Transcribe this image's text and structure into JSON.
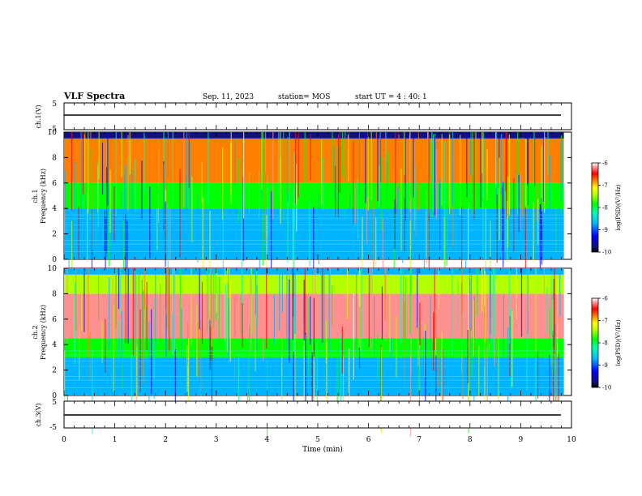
{
  "header": {
    "title": "VLF Spectra",
    "date": "Sep. 11, 2023",
    "station": "station= MOS",
    "start": "start UT =  4 : 40: 1"
  },
  "chart_data": [
    {
      "type": "line",
      "panel": "ch1-waveform",
      "ylabel": "ch.1(V)",
      "ylim": [
        -5,
        5
      ],
      "yticks": [
        "5",
        "-5"
      ],
      "x_range_min": [
        0,
        9.85
      ],
      "y_value": -1.8
    },
    {
      "type": "heatmap",
      "panel": "ch1-spectrogram",
      "ylabel": "ch.1\nFrequency (kHz)",
      "ylim": [
        0,
        10
      ],
      "yticks": [
        "0",
        "2",
        "4",
        "6",
        "8",
        "10"
      ],
      "colorbar": {
        "label": "log(PSD)(V²/Hz)",
        "range": [
          -10,
          -6
        ],
        "ticks": [
          "-6",
          "-7",
          "-8",
          "-9",
          "-10"
        ]
      },
      "bands": [
        {
          "from_khz": 0,
          "to_khz": 4,
          "level": -9.2
        },
        {
          "from_khz": 4,
          "to_khz": 6,
          "level": -8.0
        },
        {
          "from_khz": 6,
          "to_khz": 9.5,
          "level": -7.0
        },
        {
          "from_khz": 9.5,
          "to_khz": 10,
          "level": -9.8
        }
      ]
    },
    {
      "type": "heatmap",
      "panel": "ch2-spectrogram",
      "ylabel": "ch.2\nFrequency (kHz)",
      "ylim": [
        0,
        10
      ],
      "yticks": [
        "0",
        "2",
        "4",
        "6",
        "8",
        "10"
      ],
      "colorbar": {
        "label": "log(PSD)(V²/Hz)",
        "range": [
          -10,
          -6
        ],
        "ticks": [
          "-6",
          "-7",
          "-8",
          "-9",
          "-10"
        ]
      },
      "bands": [
        {
          "from_khz": 0,
          "to_khz": 3,
          "level": -8.8
        },
        {
          "from_khz": 3,
          "to_khz": 4.5,
          "level": -8.0
        },
        {
          "from_khz": 4.5,
          "to_khz": 8,
          "level": -6.4
        },
        {
          "from_khz": 8,
          "to_khz": 9.5,
          "level": -7.8
        },
        {
          "from_khz": 9.5,
          "to_khz": 10,
          "level": -9.0
        }
      ]
    },
    {
      "type": "line",
      "panel": "ch3-waveform",
      "ylabel": "ch.3(V)",
      "ylim": [
        -5,
        5
      ],
      "yticks": [
        "5",
        "-5"
      ],
      "x_range_min": [
        0,
        9.85
      ],
      "y_value": -1.8
    }
  ],
  "xaxis": {
    "label": "Time (min)",
    "range": [
      0,
      10
    ],
    "ticks": [
      "0",
      "1",
      "2",
      "3",
      "4",
      "5",
      "6",
      "7",
      "8",
      "9",
      "10"
    ]
  }
}
